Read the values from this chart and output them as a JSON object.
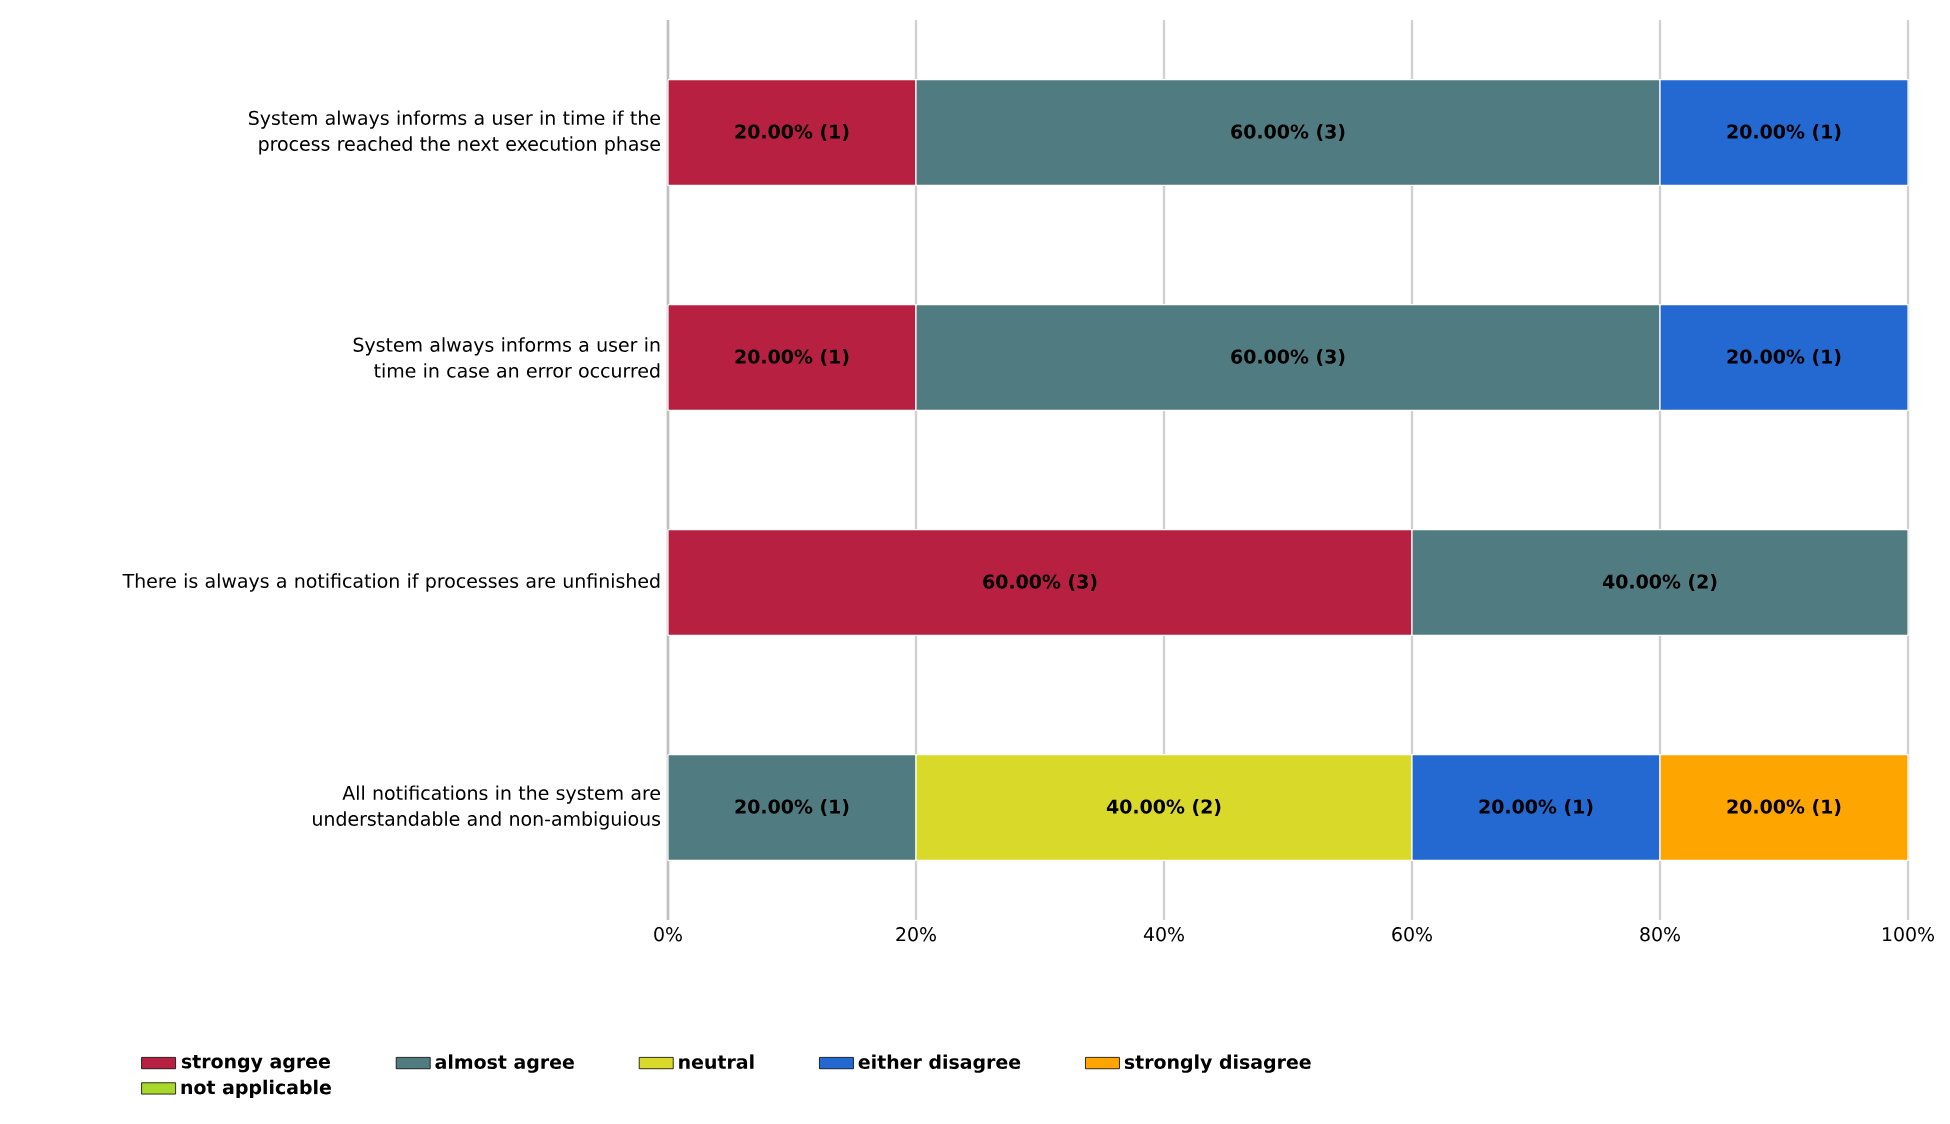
{
  "chart_data": {
    "type": "bar",
    "orientation": "horizontal",
    "stacked": true,
    "categories": [
      "System always informs a user in time if the process reached the next execution phase",
      "System always informs a user in time in case an error occurred",
      "There is always a notification if processes are unfinished",
      "All notifications in the system are understandable and non-ambiguious"
    ],
    "series": [
      {
        "name": "strongy agree",
        "color": "#b82042",
        "values": [
          20,
          20,
          60,
          null
        ],
        "value_labels": [
          "20.00% (1)",
          "20.00% (1)",
          "60.00% (3)",
          null
        ]
      },
      {
        "name": "almost agree",
        "color": "#507b80",
        "values": [
          60,
          60,
          40,
          20
        ],
        "value_labels": [
          "60.00% (3)",
          "60.00% (3)",
          "40.00% (2)",
          "20.00% (1)"
        ]
      },
      {
        "name": "neutral",
        "color": "#d9d92a",
        "values": [
          null,
          null,
          null,
          40
        ],
        "value_labels": [
          null,
          null,
          null,
          "40.00% (2)"
        ]
      },
      {
        "name": "either disagree",
        "color": "#2369d1",
        "values": [
          20,
          20,
          null,
          20
        ],
        "value_labels": [
          "20.00% (1)",
          "20.00% (1)",
          null,
          "20.00% (1)"
        ]
      },
      {
        "name": "strongly disagree",
        "color": "#ffa500",
        "values": [
          null,
          null,
          null,
          20
        ],
        "value_labels": [
          null,
          null,
          null,
          "20.00% (1)"
        ]
      },
      {
        "name": "not applicable",
        "color": "#a8d92a",
        "values": [
          null,
          null,
          null,
          null
        ]
      }
    ],
    "xlim": [
      0,
      100
    ],
    "xticks": [
      {
        "value": 0,
        "label": "0%"
      },
      {
        "value": 20,
        "label": "20%"
      },
      {
        "value": 40,
        "label": "40%"
      },
      {
        "value": 60,
        "label": "60%"
      },
      {
        "value": 80,
        "label": "80%"
      },
      {
        "value": 100,
        "label": "100%"
      }
    ],
    "grid": "x",
    "legend": "bottom"
  }
}
